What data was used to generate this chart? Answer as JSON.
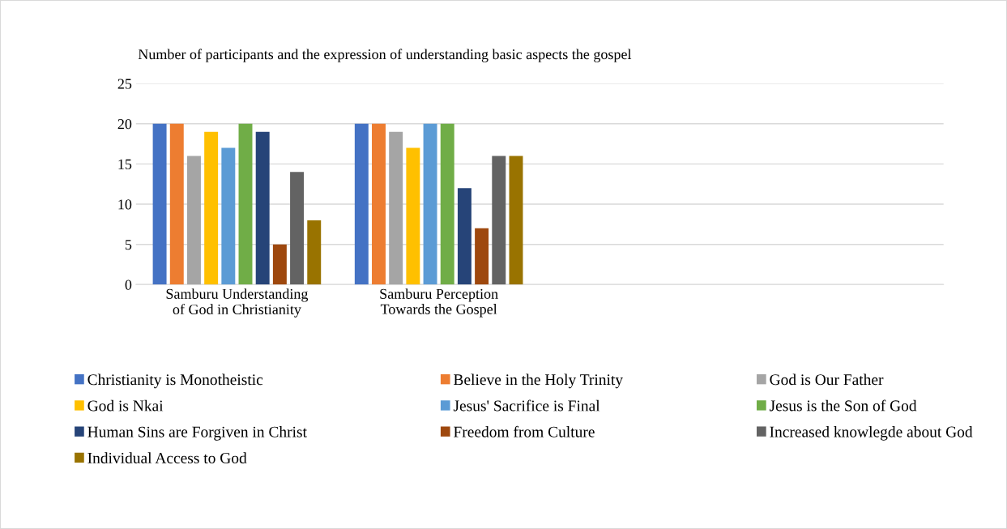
{
  "chart_data": {
    "type": "bar",
    "title": "Number of participants and the expression of understanding basic aspects the gospel",
    "categories": [
      "Samburu Understanding\nof God in Christianity",
      "Samburu Perception\nTowards the Gospel",
      null,
      null
    ],
    "series": [
      {
        "name": "Christianity is Monotheistic",
        "color": "#4472c4",
        "values": [
          20,
          20,
          null,
          null
        ]
      },
      {
        "name": "Believe in the Holy Trinity",
        "color": "#ed7d31",
        "values": [
          20,
          20,
          null,
          null
        ]
      },
      {
        "name": "God is Our Father",
        "color": "#a5a5a5",
        "values": [
          16,
          19,
          null,
          null
        ]
      },
      {
        "name": "God is Nkai",
        "color": "#ffc000",
        "values": [
          19,
          17,
          null,
          null
        ]
      },
      {
        "name": "Jesus' Sacrifice is Final",
        "color": "#5b9bd5",
        "values": [
          17,
          20,
          null,
          null
        ]
      },
      {
        "name": "Jesus is the Son of God",
        "color": "#70ad47",
        "values": [
          20,
          20,
          null,
          null
        ]
      },
      {
        "name": "Human Sins are Forgiven in Christ",
        "color": "#264478",
        "values": [
          19,
          12,
          null,
          null
        ]
      },
      {
        "name": "Freedom from Culture",
        "color": "#9e480e",
        "values": [
          5,
          7,
          null,
          null
        ]
      },
      {
        "name": "Increased knowlegde about God",
        "color": "#636363",
        "values": [
          14,
          16,
          null,
          null
        ]
      },
      {
        "name": "Individual Access to God",
        "color": "#997300",
        "values": [
          8,
          16,
          null,
          null
        ]
      }
    ],
    "ylim": [
      0,
      25
    ],
    "yticks": [
      0,
      5,
      10,
      15,
      20,
      25
    ],
    "grid": "y",
    "legend": "bottom"
  }
}
